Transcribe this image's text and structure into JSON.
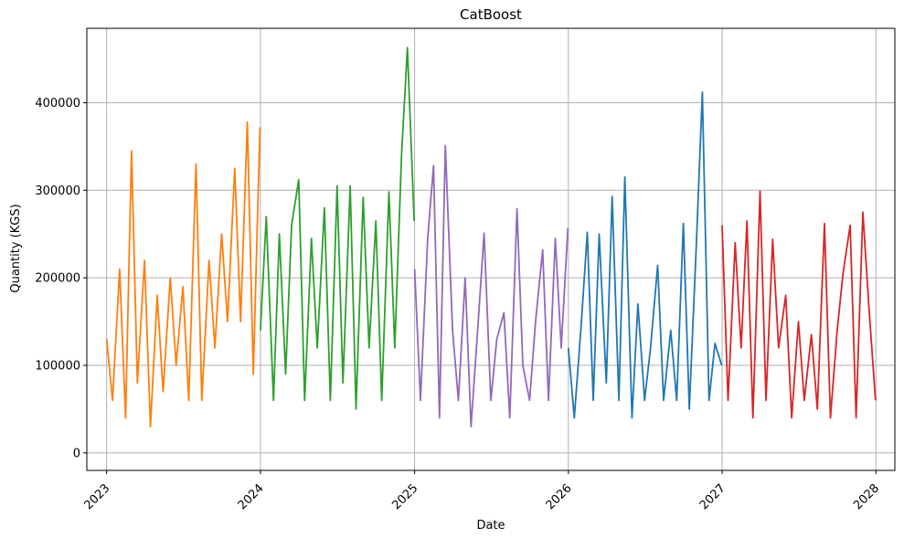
{
  "chart_data": {
    "type": "line",
    "title": "CatBoost",
    "xlabel": "Date",
    "ylabel": "Quantity (KGS)",
    "xlim": [
      "2022-11-15",
      "2028-02-15"
    ],
    "ylim": [
      -20000,
      485000
    ],
    "grid": true,
    "x_ticks": [
      "2023",
      "2024",
      "2025",
      "2026",
      "2027",
      "2028"
    ],
    "y_ticks": [
      0,
      100000,
      200000,
      300000,
      400000
    ],
    "y_tick_labels": [
      "0",
      "100000",
      "200000",
      "300000",
      "400000"
    ],
    "series": [
      {
        "color": "#ff7f0e",
        "x": [
          "2023-01-01",
          "2023-01-15",
          "2023-02-01",
          "2023-02-15",
          "2023-03-01",
          "2023-03-15",
          "2023-04-01",
          "2023-04-15",
          "2023-05-01",
          "2023-05-15",
          "2023-06-01",
          "2023-06-15",
          "2023-07-01",
          "2023-07-15",
          "2023-08-01",
          "2023-08-15",
          "2023-09-01",
          "2023-09-15",
          "2023-10-01",
          "2023-10-15",
          "2023-11-01",
          "2023-11-15",
          "2023-12-01",
          "2023-12-15",
          "2023-12-31"
        ],
        "y": [
          130000,
          60000,
          210000,
          40000,
          345000,
          80000,
          220000,
          30000,
          180000,
          70000,
          200000,
          100000,
          190000,
          60000,
          330000,
          60000,
          220000,
          120000,
          250000,
          150000,
          325000,
          150000,
          378000,
          90000,
          372000
        ]
      },
      {
        "color": "#2ca02c",
        "x": [
          "2024-01-01",
          "2024-01-15",
          "2024-02-01",
          "2024-02-15",
          "2024-03-01",
          "2024-03-15",
          "2024-04-01",
          "2024-04-15",
          "2024-05-01",
          "2024-05-15",
          "2024-06-01",
          "2024-06-15",
          "2024-07-01",
          "2024-07-15",
          "2024-08-01",
          "2024-08-15",
          "2024-09-01",
          "2024-09-15",
          "2024-10-01",
          "2024-10-15",
          "2024-11-01",
          "2024-11-15",
          "2024-12-01",
          "2024-12-15",
          "2024-12-31"
        ],
        "y": [
          140000,
          270000,
          60000,
          250000,
          90000,
          260000,
          312000,
          60000,
          245000,
          120000,
          280000,
          60000,
          305000,
          80000,
          305000,
          50000,
          292000,
          120000,
          265000,
          60000,
          298000,
          120000,
          340000,
          463000,
          265000
        ]
      },
      {
        "color": "#9467bd",
        "x": [
          "2025-01-01",
          "2025-01-15",
          "2025-02-01",
          "2025-02-15",
          "2025-03-01",
          "2025-03-15",
          "2025-04-01",
          "2025-04-15",
          "2025-05-01",
          "2025-05-15",
          "2025-06-01",
          "2025-06-15",
          "2025-07-01",
          "2025-07-15",
          "2025-08-01",
          "2025-08-15",
          "2025-09-01",
          "2025-09-15",
          "2025-10-01",
          "2025-10-15",
          "2025-11-01",
          "2025-11-15",
          "2025-12-01",
          "2025-12-15",
          "2025-12-31"
        ],
        "y": [
          210000,
          60000,
          245000,
          328000,
          40000,
          351000,
          140000,
          60000,
          200000,
          30000,
          150000,
          251000,
          60000,
          130000,
          160000,
          40000,
          279000,
          100000,
          60000,
          150000,
          232000,
          60000,
          245000,
          120000,
          257000
        ]
      },
      {
        "color": "#1f77b4",
        "x": [
          "2026-01-01",
          "2026-01-15",
          "2026-02-01",
          "2026-02-15",
          "2026-03-01",
          "2026-03-15",
          "2026-04-01",
          "2026-04-15",
          "2026-05-01",
          "2026-05-15",
          "2026-06-01",
          "2026-06-15",
          "2026-07-01",
          "2026-07-15",
          "2026-08-01",
          "2026-08-15",
          "2026-09-01",
          "2026-09-15",
          "2026-10-01",
          "2026-10-15",
          "2026-11-01",
          "2026-11-15",
          "2026-12-01",
          "2026-12-15",
          "2026-12-31"
        ],
        "y": [
          120000,
          40000,
          150000,
          252000,
          60000,
          250000,
          80000,
          293000,
          60000,
          315000,
          40000,
          170000,
          60000,
          120000,
          214000,
          60000,
          140000,
          60000,
          262000,
          50000,
          240000,
          412000,
          60000,
          125000,
          100000
        ]
      },
      {
        "color": "#d62728",
        "x": [
          "2027-01-01",
          "2027-01-15",
          "2027-02-01",
          "2027-02-15",
          "2027-03-01",
          "2027-03-15",
          "2027-04-01",
          "2027-04-15",
          "2027-05-01",
          "2027-05-15",
          "2027-06-01",
          "2027-06-15",
          "2027-07-01",
          "2027-07-15",
          "2027-08-01",
          "2027-08-15",
          "2027-09-01",
          "2027-09-15",
          "2027-10-01",
          "2027-10-15",
          "2027-11-01",
          "2027-11-15",
          "2027-12-01",
          "2027-12-15",
          "2027-12-31"
        ],
        "y": [
          260000,
          60000,
          240000,
          120000,
          265000,
          40000,
          299000,
          60000,
          244000,
          120000,
          180000,
          40000,
          150000,
          60000,
          135000,
          50000,
          262000,
          40000,
          140000,
          205000,
          260000,
          40000,
          275000,
          170000,
          60000
        ]
      }
    ]
  }
}
